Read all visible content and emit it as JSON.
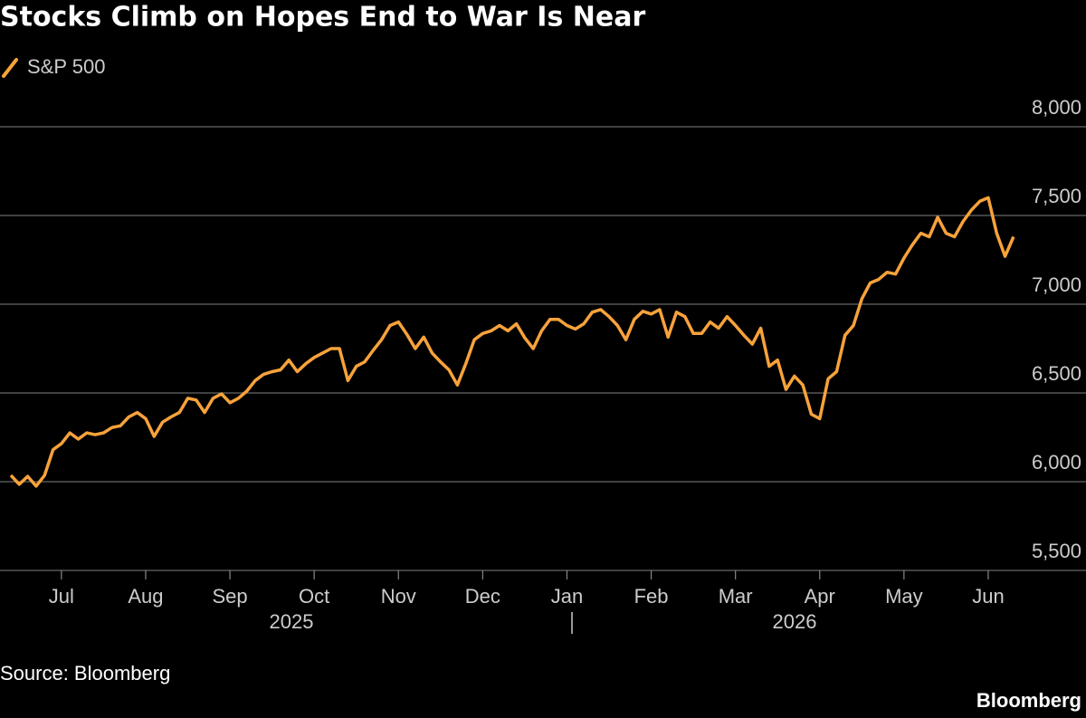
{
  "chart_data": {
    "type": "line",
    "title": "Stocks Climb on Hopes End to War Is Near",
    "source": "Source: Bloomberg",
    "logo": "Bloomberg",
    "x_groups": [
      "2025",
      "2026"
    ],
    "categories": [
      null,
      null,
      null,
      null,
      null,
      null,
      "Jul",
      null,
      null,
      null,
      null,
      null,
      null,
      null,
      null,
      null,
      "Aug",
      null,
      null,
      null,
      null,
      null,
      null,
      null,
      null,
      null,
      "Sep",
      null,
      null,
      null,
      null,
      null,
      null,
      null,
      null,
      null,
      "Oct",
      null,
      null,
      null,
      null,
      null,
      null,
      null,
      null,
      null,
      "Nov",
      null,
      null,
      null,
      null,
      null,
      null,
      null,
      null,
      null,
      "Dec",
      null,
      null,
      null,
      null,
      null,
      null,
      null,
      null,
      null,
      "Jan",
      null,
      null,
      null,
      null,
      null,
      null,
      null,
      null,
      null,
      "Feb",
      null,
      null,
      null,
      null,
      null,
      null,
      null,
      null,
      null,
      "Mar",
      null,
      null,
      null,
      null,
      null,
      null,
      null,
      null,
      null,
      "Apr",
      null,
      null,
      null,
      null,
      null,
      null,
      null,
      null,
      null,
      "May",
      null,
      null,
      null,
      null,
      null,
      null,
      null,
      null,
      null,
      "Jun",
      null,
      null,
      null
    ],
    "series": [
      {
        "name": "S&P 500",
        "color": "#f7a23b",
        "values": [
          6036,
          5985,
          6030,
          5975,
          6035,
          6180,
          6215,
          6275,
          6240,
          6275,
          6265,
          6275,
          6305,
          6315,
          6365,
          6390,
          6355,
          6255,
          6335,
          6365,
          6390,
          6470,
          6460,
          6390,
          6470,
          6495,
          6445,
          6470,
          6510,
          6570,
          6605,
          6620,
          6630,
          6685,
          6620,
          6665,
          6700,
          6725,
          6750,
          6750,
          6570,
          6650,
          6675,
          6740,
          6800,
          6880,
          6900,
          6830,
          6750,
          6815,
          6725,
          6675,
          6630,
          6545,
          6665,
          6800,
          6835,
          6850,
          6880,
          6850,
          6890,
          6810,
          6750,
          6850,
          6915,
          6915,
          6880,
          6860,
          6890,
          6955,
          6970,
          6930,
          6880,
          6800,
          6915,
          6960,
          6945,
          6970,
          6815,
          6955,
          6930,
          6835,
          6835,
          6900,
          6865,
          6930,
          6880,
          6825,
          6775,
          6865,
          6650,
          6685,
          6520,
          6595,
          6545,
          6380,
          6355,
          6580,
          6620,
          6825,
          6880,
          7030,
          7120,
          7140,
          7180,
          7170,
          7260,
          7335,
          7400,
          7380,
          7490,
          7400,
          7380,
          7465,
          7530,
          7580,
          7600,
          7400,
          7270,
          7380
        ]
      }
    ],
    "ylim": [
      5500,
      8000
    ],
    "yticks": [
      {
        "value": 5500,
        "label": "5,500"
      },
      {
        "value": 6000,
        "label": "6,000"
      },
      {
        "value": 6500,
        "label": "6,500"
      },
      {
        "value": 7000,
        "label": "7,000"
      },
      {
        "value": 7500,
        "label": "7,500"
      },
      {
        "value": 8000,
        "label": "8,000"
      }
    ],
    "grid": true
  }
}
